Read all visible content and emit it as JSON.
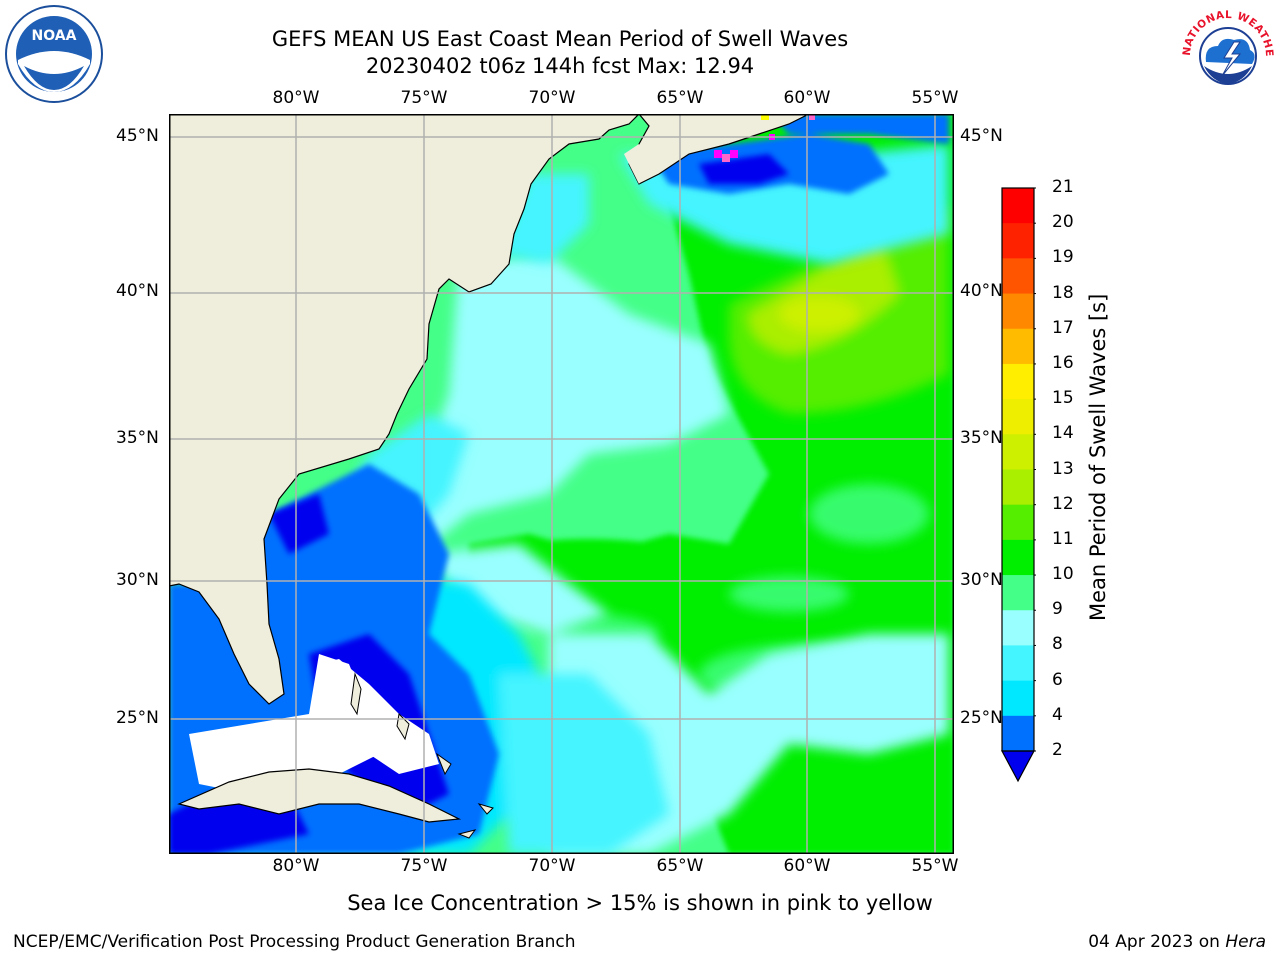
{
  "header": {
    "title_line1": "GEFS MEAN US East Coast Mean Period of Swell Waves",
    "title_line2": "20230402 t06z 144h fcst   Max: 12.94"
  },
  "logos": {
    "left": {
      "icon": "noaa-logo",
      "text": "NOAA"
    },
    "right": {
      "icon": "nws-logo",
      "text": "NATIONAL WEATHER SERVICE"
    }
  },
  "map": {
    "lon_labels": [
      "80°W",
      "75°W",
      "70°W",
      "65°W",
      "60°W",
      "55°W"
    ],
    "lat_labels": [
      "45°N",
      "40°N",
      "35°N",
      "30°N",
      "25°N"
    ],
    "land_color": "#efeedd",
    "sea_ice_colors": [
      "#ff00ff",
      "#ff66cc",
      "#ffff00"
    ]
  },
  "colorbar": {
    "label": "Mean Period of Swell Waves [s]",
    "ticks": [
      "2",
      "4",
      "6",
      "8",
      "9",
      "10",
      "11",
      "12",
      "13",
      "14",
      "15",
      "16",
      "17",
      "18",
      "19",
      "20",
      "21"
    ],
    "colors": [
      "#0000ee",
      "#0070ff",
      "#00e8ff",
      "#44f4ff",
      "#99ffff",
      "#44ff88",
      "#00ee00",
      "#55ee00",
      "#aaee00",
      "#ccf000",
      "#eeee00",
      "#ffee00",
      "#ffbb00",
      "#ff8800",
      "#ff5500",
      "#ff2200",
      "#ff0000"
    ],
    "extend": "min"
  },
  "note": "Sea Ice Concentration > 15% is shown in pink to yellow",
  "footer": {
    "left": "NCEP/EMC/Verification Post Processing Product Generation Branch",
    "right_date": "04 Apr 2023 on",
    "right_host": "Hera"
  }
}
